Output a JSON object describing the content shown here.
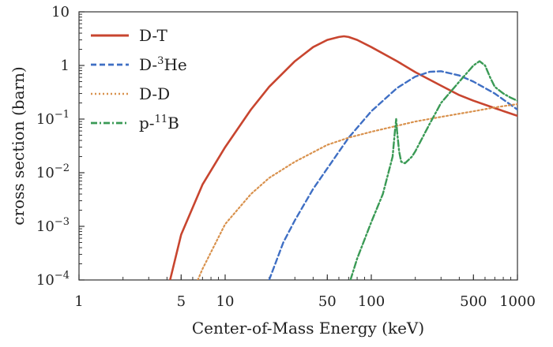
{
  "chart_data": {
    "type": "line",
    "xlabel": "Center-of-Mass Energy (keV)",
    "ylabel": "cross section (barn)",
    "x_scale": "log",
    "y_scale": "log",
    "xlim": [
      1,
      1000
    ],
    "ylim": [
      0.0001,
      10
    ],
    "grid": false,
    "legend_position": "top-left",
    "x_ticks": [
      {
        "value": 1,
        "label": "1"
      },
      {
        "value": 5,
        "label": "5"
      },
      {
        "value": 10,
        "label": "10"
      },
      {
        "value": 50,
        "label": "50"
      },
      {
        "value": 100,
        "label": "100"
      },
      {
        "value": 500,
        "label": "500"
      },
      {
        "value": 1000,
        "label": "1000"
      }
    ],
    "y_ticks": [
      {
        "value": 10,
        "base": "10",
        "exp": ""
      },
      {
        "value": 1,
        "base": "1",
        "exp": ""
      },
      {
        "value": 0.1,
        "base": "10",
        "exp": "−1"
      },
      {
        "value": 0.01,
        "base": "10",
        "exp": "−2"
      },
      {
        "value": 0.001,
        "base": "10",
        "exp": "−3"
      },
      {
        "value": 0.0001,
        "base": "10",
        "exp": "−4"
      }
    ],
    "series": [
      {
        "name": "D-T",
        "label_base": "D-T",
        "label_sup": "",
        "label_tail": "",
        "color": "#c8452f",
        "style": "solid",
        "x": [
          4.2,
          5,
          7,
          10,
          15,
          20,
          30,
          40,
          50,
          60,
          65,
          70,
          80,
          100,
          150,
          200,
          300,
          400,
          500,
          700,
          1000
        ],
        "y": [
          0.0001,
          0.0007,
          0.006,
          0.03,
          0.15,
          0.4,
          1.2,
          2.2,
          3.0,
          3.4,
          3.5,
          3.4,
          3.0,
          2.2,
          1.2,
          0.75,
          0.42,
          0.28,
          0.22,
          0.16,
          0.115
        ]
      },
      {
        "name": "D-3He",
        "label_base": "D-",
        "label_sup": "3",
        "label_tail": "He",
        "color": "#3f6fc4",
        "style": "dashed",
        "x": [
          20,
          25,
          30,
          40,
          50,
          70,
          100,
          150,
          200,
          250,
          300,
          400,
          500,
          700,
          1000
        ],
        "y": [
          0.0001,
          0.0005,
          0.0013,
          0.005,
          0.012,
          0.045,
          0.14,
          0.38,
          0.62,
          0.76,
          0.78,
          0.65,
          0.5,
          0.3,
          0.15
        ]
      },
      {
        "name": "D-D",
        "label_base": "D-D",
        "label_sup": "",
        "label_tail": "",
        "color": "#d9924e",
        "style": "dotted",
        "x": [
          6.5,
          7,
          10,
          15,
          20,
          30,
          50,
          70,
          100,
          150,
          200,
          300,
          500,
          700,
          1000
        ],
        "y": [
          0.0001,
          0.00016,
          0.0011,
          0.004,
          0.008,
          0.016,
          0.033,
          0.045,
          0.058,
          0.075,
          0.09,
          0.11,
          0.14,
          0.165,
          0.19
        ]
      },
      {
        "name": "p-11B",
        "label_base": "p-",
        "label_sup": "11",
        "label_tail": "B",
        "color": "#3a9a55",
        "style": "dashdot",
        "x": [
          72,
          80,
          100,
          120,
          140,
          145,
          148,
          150,
          155,
          160,
          170,
          190,
          200,
          250,
          300,
          400,
          500,
          550,
          600,
          650,
          700,
          800,
          900,
          1000
        ],
        "y": [
          0.0001,
          0.00025,
          0.0012,
          0.004,
          0.02,
          0.06,
          0.1,
          0.06,
          0.025,
          0.016,
          0.015,
          0.02,
          0.025,
          0.08,
          0.2,
          0.5,
          1.0,
          1.2,
          1.0,
          0.6,
          0.4,
          0.3,
          0.25,
          0.22
        ]
      }
    ]
  }
}
